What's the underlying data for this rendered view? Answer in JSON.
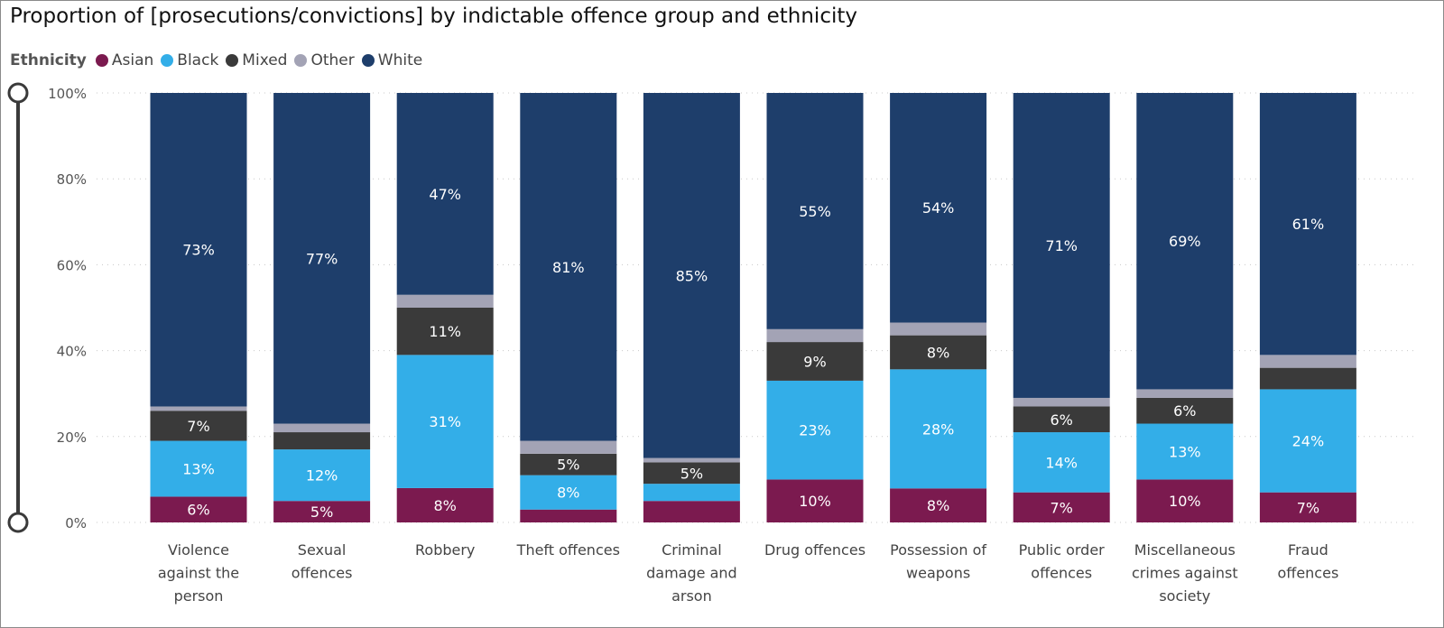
{
  "chart_data": {
    "type": "bar",
    "stacked": true,
    "title": "Proportion of [prosecutions/convictions] by indictable offence group and ethnicity",
    "legend_title": "Ethnicity",
    "legend_position": "top-left",
    "grid": true,
    "ylim": [
      0,
      100
    ],
    "y_ticks": [
      "0%",
      "20%",
      "40%",
      "60%",
      "80%",
      "100%"
    ],
    "categories": [
      "Violence against the person",
      "Sexual offences",
      "Robbery",
      "Theft offences",
      "Criminal damage and arson",
      "Drug offences",
      "Possession of weapons",
      "Public order offences",
      "Miscellaneous crimes against society",
      "Fraud offences"
    ],
    "category_lines": [
      [
        "Violence",
        "against the",
        "person"
      ],
      [
        "Sexual",
        "offences"
      ],
      [
        "Robbery"
      ],
      [
        "Theft offences"
      ],
      [
        "Criminal",
        "damage and",
        "arson"
      ],
      [
        "Drug offences"
      ],
      [
        "Possession of",
        "weapons"
      ],
      [
        "Public order",
        "offences"
      ],
      [
        "Miscellaneous",
        "crimes against",
        "society"
      ],
      [
        "Fraud",
        "offences"
      ]
    ],
    "series": [
      {
        "name": "Asian",
        "color": "#7b1a4f",
        "values": [
          6,
          5,
          8,
          3,
          5,
          10,
          8,
          7,
          10,
          7
        ],
        "labels": [
          "6%",
          "5%",
          "8%",
          "",
          "",
          "10%",
          "8%",
          "7%",
          "10%",
          "7%"
        ]
      },
      {
        "name": "Black",
        "color": "#33aee8",
        "values": [
          13,
          12,
          31,
          8,
          4,
          23,
          28,
          14,
          13,
          24
        ],
        "labels": [
          "13%",
          "12%",
          "31%",
          "8%",
          "",
          "23%",
          "28%",
          "14%",
          "13%",
          "24%"
        ]
      },
      {
        "name": "Mixed",
        "color": "#3a3a3a",
        "values": [
          7,
          4,
          11,
          5,
          5,
          9,
          8,
          6,
          6,
          5
        ],
        "labels": [
          "7%",
          "",
          "11%",
          "5%",
          "5%",
          "9%",
          "8%",
          "6%",
          "6%",
          ""
        ]
      },
      {
        "name": "Other",
        "color": "#a3a3b5",
        "values": [
          1,
          2,
          3,
          3,
          1,
          3,
          3,
          2,
          2,
          3
        ],
        "labels": [
          "",
          "",
          "",
          "",
          "",
          "",
          "",
          "",
          "",
          ""
        ]
      },
      {
        "name": "White",
        "color": "#1e3e6b",
        "values": [
          73,
          77,
          47,
          81,
          85,
          55,
          54,
          71,
          69,
          61
        ],
        "labels": [
          "73%",
          "77%",
          "47%",
          "81%",
          "85%",
          "55%",
          "54%",
          "71%",
          "69%",
          "61%"
        ]
      }
    ]
  }
}
